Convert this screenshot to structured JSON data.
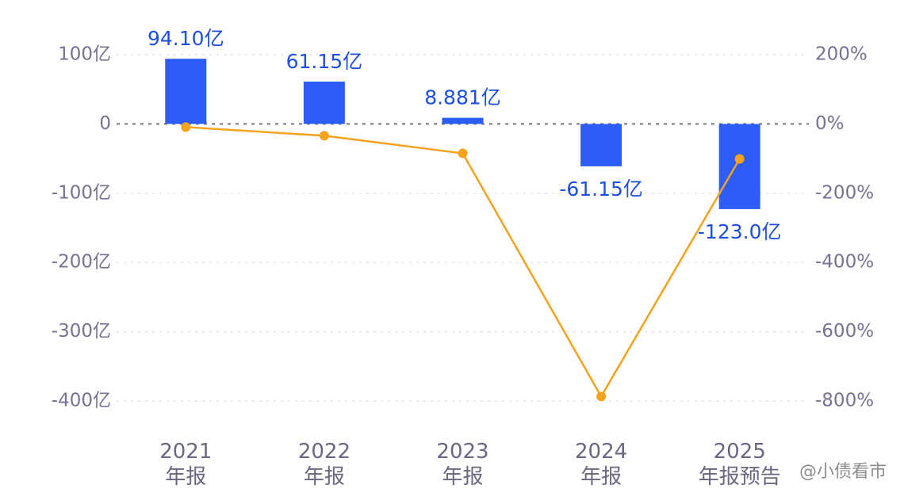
{
  "chart_data": {
    "type": "bar-line",
    "categories": [
      "2021\n年报",
      "2022\n年报",
      "2023\n年报",
      "2024\n年报",
      "2025\n年报预告"
    ],
    "series": [
      {
        "type": "bar",
        "color": "#2d5cf6",
        "values": [
          94.1,
          61.15,
          8.881,
          -61.15,
          -123.0
        ],
        "value_labels": [
          "94.10亿",
          "61.15亿",
          "8.881亿",
          "-61.15亿",
          "-123.0亿"
        ]
      },
      {
        "type": "line",
        "axis": "y2",
        "color": "#f5a21c",
        "values": [
          -9,
          -34,
          -85,
          -787,
          -101
        ]
      }
    ],
    "ylim": [
      -400,
      100
    ],
    "yticks": [
      {
        "value": 100,
        "label": "100亿"
      },
      0,
      {
        "value": -100,
        "label": "-100亿"
      },
      {
        "value": -200,
        "label": "-200亿"
      },
      {
        "value": -300,
        "label": "-300亿"
      },
      {
        "value": -400,
        "label": "-400亿"
      }
    ],
    "y2lim": [
      -800,
      200
    ],
    "y2ticks": [
      {
        "value": 200,
        "label": "200%"
      },
      {
        "value": 0,
        "label": "0%"
      },
      {
        "value": -200,
        "label": "-200%"
      },
      {
        "value": -400,
        "label": "-400%"
      },
      {
        "value": -600,
        "label": "-600%"
      },
      {
        "value": -800,
        "label": "-800%"
      }
    ],
    "grid": true,
    "watermark": "@小债看市"
  }
}
